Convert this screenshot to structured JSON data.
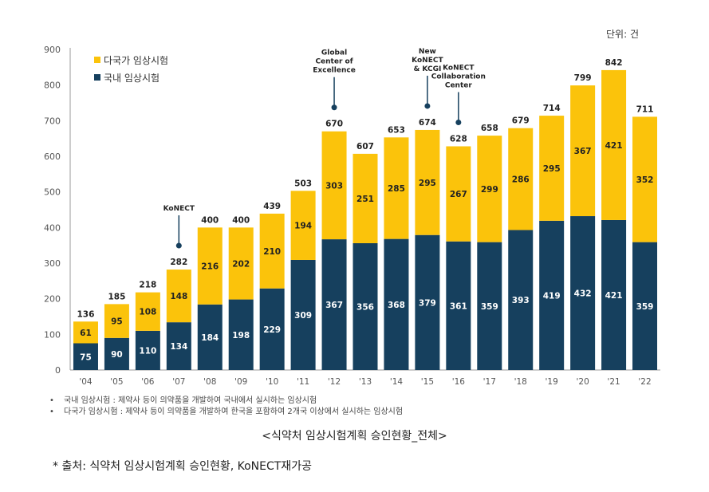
{
  "unit_label": "단위: 건",
  "notes": [
    "국내 임상시험 : 제약사 등이 의약품을 개발하여 국내에서 실시하는 임상시험",
    "다국가 임상시험 : 제약사 등이 의약품을 개발하여 한국을 포함하여 2개국 이상에서 실시하는 임상시험"
  ],
  "caption": "<식약처 임상시험계획 승인현황_전체>",
  "source": "* 출처: 식약처 임상시험계획 승인현황, KoNECT재가공",
  "colors": {
    "domestic": "#16405e",
    "multinational": "#fbc30b",
    "axis_text": "#555555",
    "annotation": "#16405e"
  },
  "chart_data": {
    "type": "bar",
    "stacked": true,
    "categories": [
      "'04",
      "'05",
      "'06",
      "'07",
      "'08",
      "'09",
      "'10",
      "'11",
      "'12",
      "'13",
      "'14",
      "'15",
      "'16",
      "'17",
      "'18",
      "'19",
      "'20",
      "'21",
      "'22"
    ],
    "series": [
      {
        "name": "국내 임상시험",
        "values": [
          75,
          90,
          110,
          134,
          184,
          198,
          229,
          309,
          367,
          356,
          368,
          379,
          361,
          359,
          393,
          419,
          432,
          421,
          359
        ]
      },
      {
        "name": "다국가 임상시험",
        "values": [
          61,
          95,
          108,
          148,
          216,
          202,
          210,
          194,
          303,
          251,
          285,
          295,
          267,
          299,
          286,
          295,
          367,
          421,
          352
        ]
      }
    ],
    "totals": [
      136,
      185,
      218,
      282,
      400,
      400,
      439,
      503,
      670,
      607,
      653,
      674,
      628,
      658,
      679,
      714,
      799,
      842,
      711
    ],
    "ylim": [
      0,
      900
    ],
    "yticks": [
      0,
      100,
      200,
      300,
      400,
      500,
      600,
      700,
      800,
      900
    ],
    "legend_position": "top-left",
    "grid": false,
    "annotations": [
      {
        "category": "'07",
        "lines": [
          "KoNECT"
        ]
      },
      {
        "category": "'12",
        "lines": [
          "Global",
          "Center of",
          "Excellence"
        ]
      },
      {
        "category": "'15",
        "lines": [
          "New",
          "KoNECT",
          "& KCGI"
        ]
      },
      {
        "category": "'16",
        "lines": [
          "KoNECT",
          "Collaboration",
          "Center"
        ]
      }
    ]
  }
}
